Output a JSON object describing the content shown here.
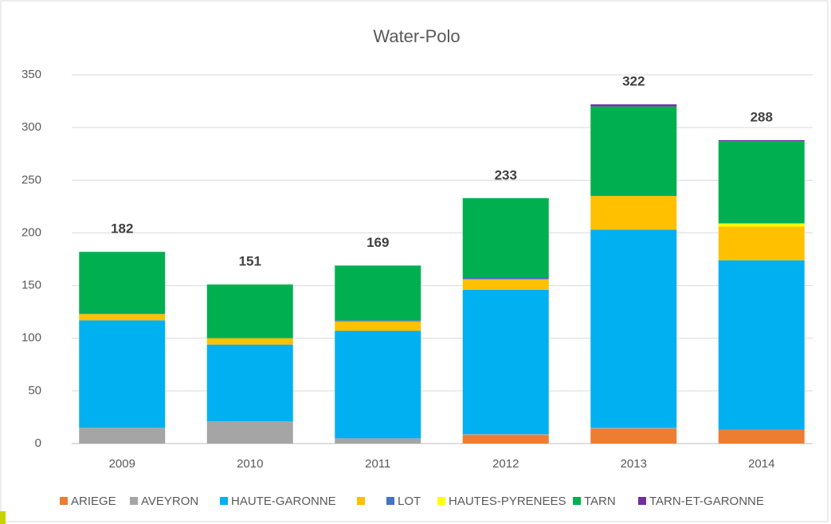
{
  "chart_data": {
    "type": "stacked_bar",
    "title": "Water-Polo",
    "categories": [
      "2009",
      "2010",
      "2011",
      "2012",
      "2013",
      "2014"
    ],
    "series": [
      {
        "name": "ARIEGE",
        "color": "#ed7d31",
        "values": [
          0,
          0,
          0,
          8,
          14,
          13
        ]
      },
      {
        "name": "AVEYRON",
        "color": "#a5a5a5",
        "values": [
          15,
          21,
          5,
          1,
          1,
          0
        ]
      },
      {
        "name": "HAUTE-GARONNE",
        "color": "#00b0f0",
        "values": [
          102,
          73,
          102,
          137,
          188,
          161
        ]
      },
      {
        "name": null,
        "color": "#ffc000",
        "values": [
          6,
          6,
          9,
          10,
          32,
          32
        ]
      },
      {
        "name": "LOT",
        "color": "#4472c4",
        "values": [
          0,
          0,
          1,
          2,
          0,
          0
        ]
      },
      {
        "name": "HAUTES-PYRENEES",
        "color": "#ffff00",
        "values": [
          0,
          0,
          0,
          0,
          0,
          3
        ]
      },
      {
        "name": "TARN",
        "color": "#00b050",
        "values": [
          59,
          51,
          52,
          75,
          85,
          78
        ]
      },
      {
        "name": "TARN-ET-GARONNE",
        "color": "#7030a0",
        "values": [
          0,
          0,
          0,
          0,
          2,
          1
        ]
      }
    ],
    "totals": [
      182,
      151,
      169,
      233,
      322,
      288
    ],
    "ylim": [
      0,
      350
    ],
    "yticks": [
      0,
      50,
      100,
      150,
      200,
      250,
      300,
      350
    ],
    "grid": true,
    "legend": "bottom"
  }
}
